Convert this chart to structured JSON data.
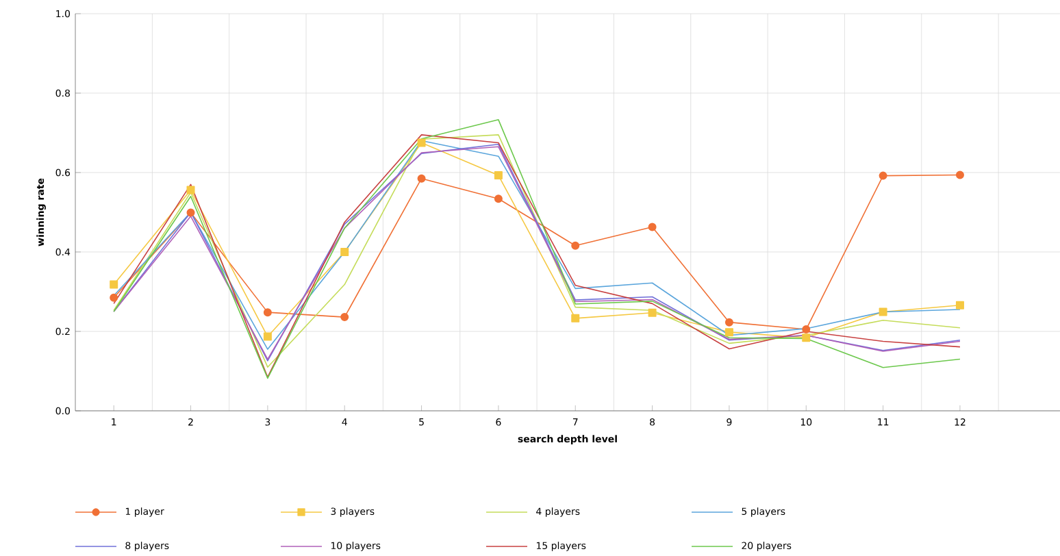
{
  "chart_data": {
    "type": "line",
    "xlabel": "search depth level",
    "ylabel": "winning rate",
    "categories": [
      "1",
      "2",
      "3",
      "4",
      "5",
      "6",
      "7",
      "8",
      "9",
      "10",
      "11",
      "12"
    ],
    "ylim": [
      0,
      1
    ],
    "yticks": [
      {
        "value": 0,
        "label": "0.0"
      },
      {
        "value": 0.2,
        "label": "0.2"
      },
      {
        "value": 0.4,
        "label": "0.4"
      },
      {
        "value": 0.6,
        "label": "0.6"
      },
      {
        "value": 0.8,
        "label": "0.8"
      },
      {
        "value": 1,
        "label": "1.0"
      }
    ],
    "grid": true,
    "legend": "bottom",
    "series": [
      {
        "name": "1 player",
        "color": "#f07035",
        "marker": "circle",
        "values": [
          0.285,
          0.499,
          0.248,
          0.236,
          0.585,
          0.534,
          0.416,
          0.463,
          0.223,
          0.205,
          0.592,
          0.594
        ]
      },
      {
        "name": "3 players",
        "color": "#f5c842",
        "marker": "square",
        "values": [
          0.318,
          0.556,
          0.187,
          0.4,
          0.675,
          0.593,
          0.233,
          0.247,
          0.198,
          0.184,
          0.249,
          0.266
        ]
      },
      {
        "name": "4 players",
        "color": "#c5dc5a",
        "values": [
          0.253,
          0.55,
          0.11,
          0.318,
          0.684,
          0.695,
          0.261,
          0.253,
          0.17,
          0.19,
          0.228,
          0.209
        ]
      },
      {
        "name": "5 players",
        "color": "#5aa5dc",
        "values": [
          0.29,
          0.5,
          0.155,
          0.4,
          0.68,
          0.641,
          0.308,
          0.322,
          0.19,
          0.207,
          0.249,
          0.255
        ]
      },
      {
        "name": "8 players",
        "color": "#7070d8",
        "values": [
          0.25,
          0.5,
          0.126,
          0.47,
          0.648,
          0.671,
          0.279,
          0.287,
          0.178,
          0.19,
          0.152,
          0.178
        ]
      },
      {
        "name": "10 players",
        "color": "#b060b8",
        "values": [
          0.25,
          0.49,
          0.13,
          0.46,
          0.65,
          0.665,
          0.275,
          0.28,
          0.18,
          0.19,
          0.15,
          0.175
        ]
      },
      {
        "name": "15 players",
        "color": "#c84040",
        "values": [
          0.27,
          0.57,
          0.085,
          0.475,
          0.695,
          0.675,
          0.316,
          0.27,
          0.156,
          0.2,
          0.175,
          0.161
        ]
      },
      {
        "name": "20 players",
        "color": "#6cc84c",
        "values": [
          0.25,
          0.54,
          0.082,
          0.46,
          0.685,
          0.733,
          0.269,
          0.276,
          0.184,
          0.182,
          0.109,
          0.13
        ]
      }
    ]
  }
}
